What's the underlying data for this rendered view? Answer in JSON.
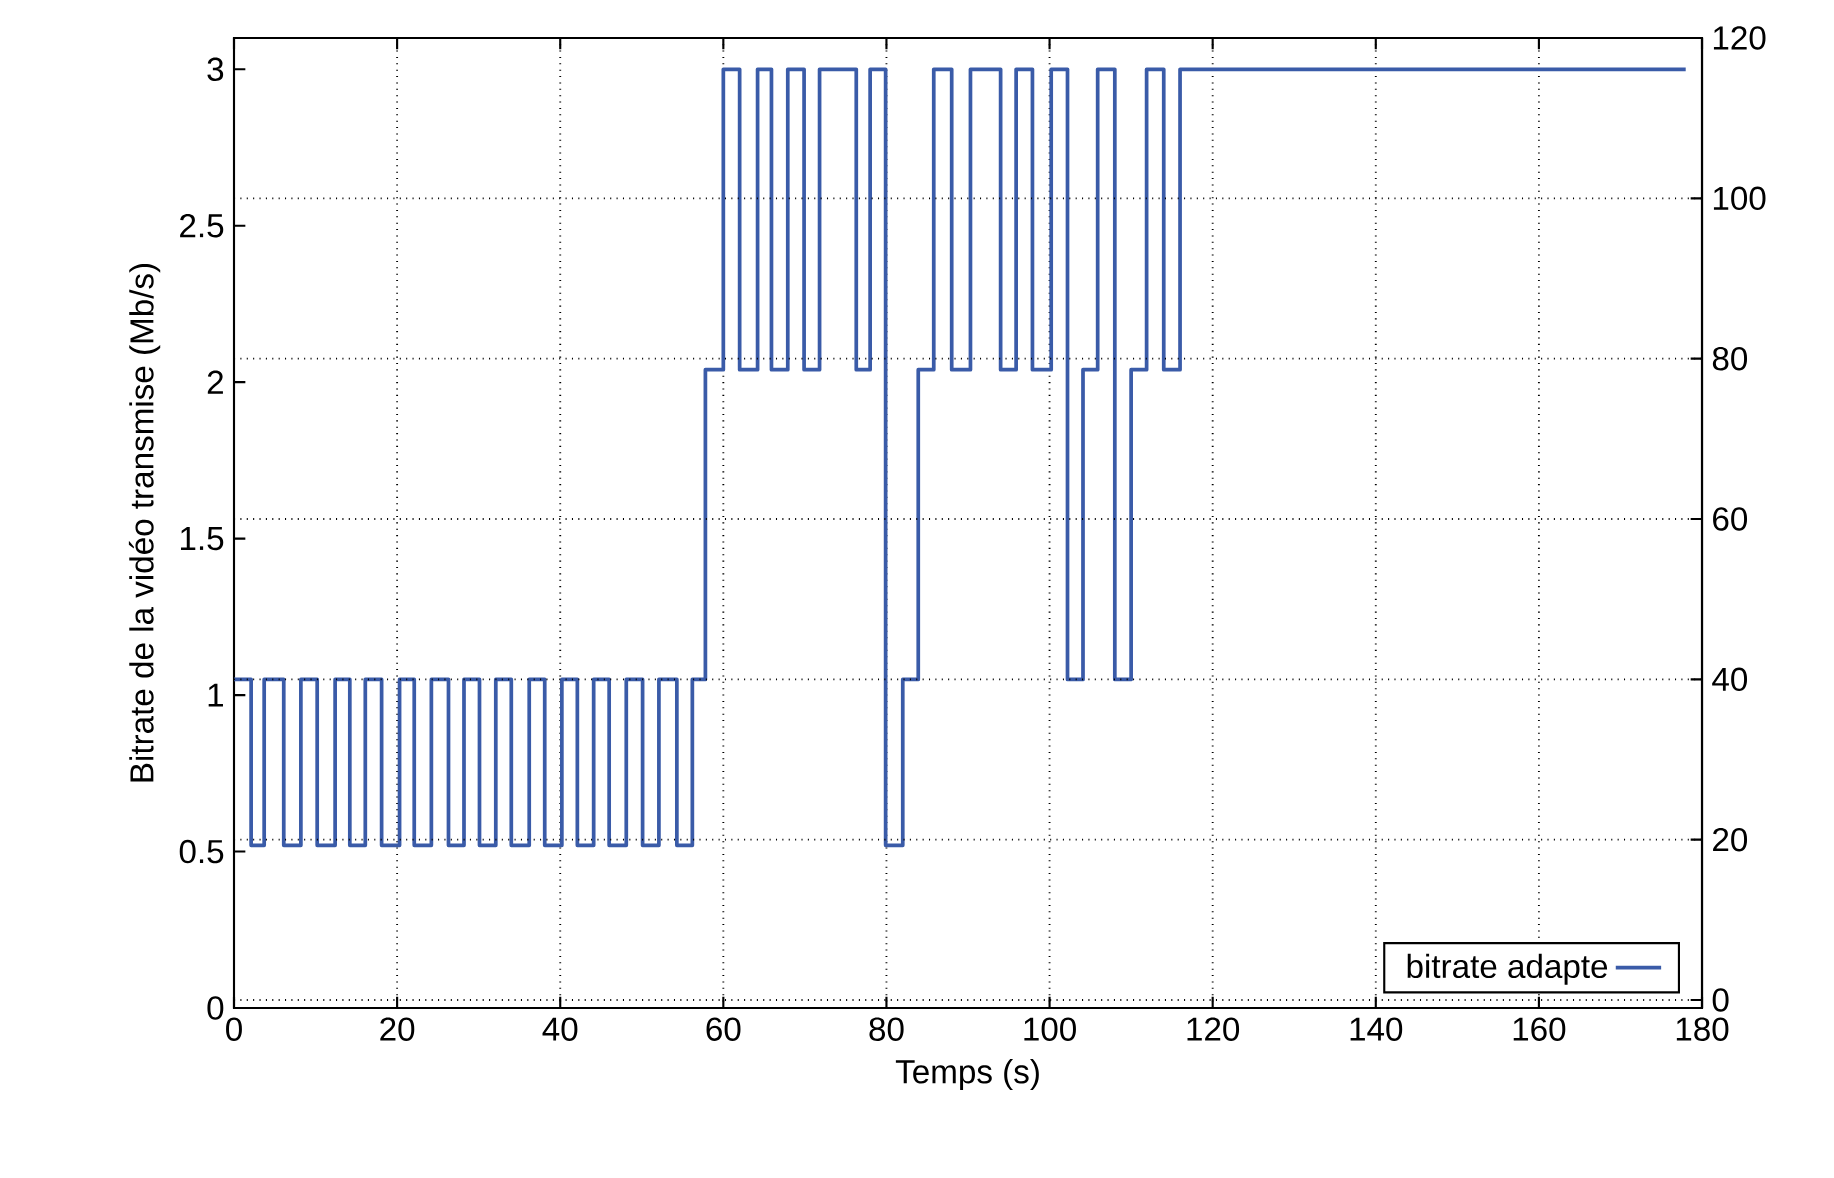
{
  "chart_data": {
    "type": "step",
    "xlabel": "Temps (s)",
    "ylabel": "Bitrate de la vidéo transmise (Mb/s)",
    "x": [
      0,
      2.1,
      3.7,
      6.1,
      8.2,
      10.2,
      12.4,
      14.2,
      16.1,
      18.1,
      20.3,
      22.1,
      24.2,
      26.3,
      28.2,
      30.1,
      32.1,
      34.0,
      36.2,
      38.1,
      40.2,
      42.1,
      44.1,
      46.0,
      48.1,
      50.1,
      52.1,
      54.3,
      56.2,
      57.8,
      60.0,
      62.0,
      64.2,
      65.9,
      67.9,
      69.9,
      71.8,
      76.3,
      78.0,
      79.9,
      82.0,
      83.9,
      85.8,
      88.0,
      90.3,
      94.0,
      95.9,
      97.9,
      100.2,
      102.2,
      104.1,
      105.9,
      108.0,
      110.0,
      111.9,
      114.0,
      116.0,
      178.0
    ],
    "series": [
      {
        "name": "bitrate adapte",
        "color": "#3a5ba8",
        "values": [
          1.05,
          0.52,
          1.05,
          0.52,
          1.05,
          0.52,
          1.05,
          0.52,
          1.05,
          0.52,
          1.05,
          0.52,
          1.05,
          0.52,
          1.05,
          0.52,
          1.05,
          0.52,
          1.05,
          0.52,
          1.05,
          0.52,
          1.05,
          0.52,
          1.05,
          0.52,
          1.05,
          0.52,
          1.05,
          2.04,
          3.0,
          2.04,
          3.0,
          2.04,
          3.0,
          2.04,
          3.0,
          2.04,
          3.0,
          0.52,
          1.05,
          2.04,
          3.0,
          2.04,
          3.0,
          2.04,
          3.0,
          2.04,
          3.0,
          1.05,
          2.04,
          3.0,
          1.05,
          2.04,
          3.0,
          2.04,
          3.0,
          3.0
        ]
      }
    ],
    "xlim": [
      0,
      180
    ],
    "xticks": [
      0,
      20,
      40,
      60,
      80,
      100,
      120,
      140,
      160,
      180
    ],
    "ylim": [
      0,
      3.1
    ],
    "yticks": [
      0,
      0.5,
      1,
      1.5,
      2,
      2.5,
      3
    ],
    "y2lim": [
      -1,
      120
    ],
    "y2ticks": [
      0,
      20,
      40,
      60,
      80,
      100,
      120
    ],
    "grid": true,
    "legend": "bottom right"
  }
}
